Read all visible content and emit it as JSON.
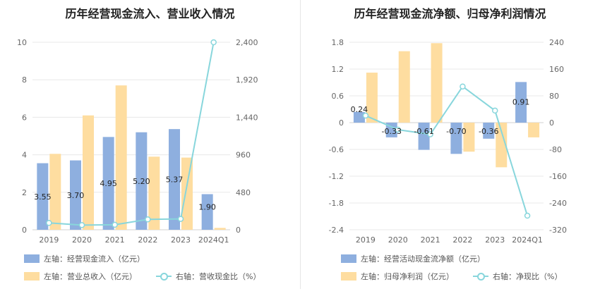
{
  "chart_data": [
    {
      "type": "bar",
      "title": "历年经营现金流入、营业收入情况",
      "categories": [
        "2019",
        "2020",
        "2021",
        "2022",
        "2023",
        "2024Q1"
      ],
      "y_left": {
        "ticks": [
          "0",
          "2",
          "4",
          "6",
          "8",
          "10"
        ],
        "ylim": [
          0,
          10
        ]
      },
      "y_right": {
        "ticks": [
          "0",
          "480",
          "960",
          "1,440",
          "1,920",
          "2,400"
        ],
        "ylim": [
          0,
          2400
        ]
      },
      "series": [
        {
          "name": "左轴：经营现金流入（亿元）",
          "axis": "left",
          "kind": "bar",
          "color": "#8eafdf",
          "values": [
            3.55,
            3.7,
            4.95,
            5.2,
            5.37,
            1.9
          ],
          "labels": [
            "3.55",
            "3.70",
            "4.95",
            "5.20",
            "5.37",
            "1.90"
          ]
        },
        {
          "name": "左轴：营业总收入（亿元）",
          "axis": "left",
          "kind": "bar",
          "color": "#fedda0",
          "values": [
            4.05,
            6.1,
            7.7,
            3.9,
            3.85,
            0.1
          ]
        },
        {
          "name": "右轴：营收现金比（%）",
          "axis": "right",
          "kind": "line",
          "color": "#88d6dc",
          "values": [
            88,
            60,
            64,
            133,
            139,
            2400
          ]
        }
      ]
    },
    {
      "type": "bar",
      "title": "历年经营现金流净额、归母净利润情况",
      "categories": [
        "2019",
        "2020",
        "2021",
        "2022",
        "2023",
        "2024Q1"
      ],
      "y_left": {
        "ticks": [
          "-2.4",
          "-1.8",
          "-1.2",
          "-0.6",
          "0",
          "0.6",
          "1.2",
          "1.8"
        ],
        "ylim": [
          -2.4,
          1.8
        ]
      },
      "y_right": {
        "ticks": [
          "-320",
          "-240",
          "-160",
          "-80",
          "0",
          "80",
          "160",
          "240"
        ],
        "ylim": [
          -320,
          240
        ]
      },
      "series": [
        {
          "name": "左轴：经营活动现金流净额（亿元）",
          "axis": "left",
          "kind": "bar",
          "color": "#8eafdf",
          "values": [
            0.24,
            -0.33,
            -0.61,
            -0.7,
            -0.36,
            0.91
          ],
          "labels": [
            "0.24",
            "-0.33",
            "-0.61",
            "-0.70",
            "-0.36",
            "0.91"
          ]
        },
        {
          "name": "左轴：归母净利润（亿元）",
          "axis": "left",
          "kind": "bar",
          "color": "#fedda0",
          "values": [
            1.12,
            1.6,
            1.78,
            -0.65,
            -1.0,
            -0.33
          ]
        },
        {
          "name": "右轴：净现比（%）",
          "axis": "right",
          "kind": "line",
          "color": "#88d6dc",
          "values": [
            21,
            -21,
            -35,
            108,
            36,
            -278
          ]
        }
      ]
    }
  ]
}
